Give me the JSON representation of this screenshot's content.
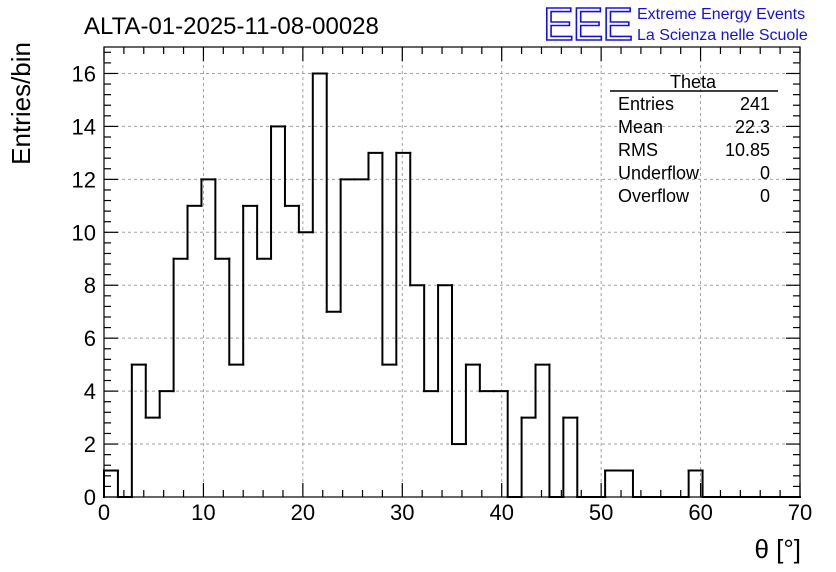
{
  "chart_data": {
    "type": "bar",
    "title": "ALTA-01-2025-11-08-00028",
    "xlabel": "θ [°]",
    "ylabel": "Entries/bin",
    "xlim": [
      0,
      70
    ],
    "ylim": [
      0,
      17
    ],
    "bin_width": 1.4,
    "x_ticks": [
      0,
      10,
      20,
      30,
      40,
      50,
      60,
      70
    ],
    "y_ticks": [
      0,
      2,
      4,
      6,
      8,
      10,
      12,
      14,
      16
    ],
    "grid": true,
    "counts": [
      1,
      0,
      5,
      3,
      4,
      9,
      11,
      12,
      9,
      5,
      11,
      9,
      14,
      11,
      10,
      16,
      7,
      12,
      12,
      13,
      5,
      13,
      8,
      4,
      8,
      2,
      5,
      4,
      4,
      0,
      3,
      5,
      0,
      3,
      0,
      0,
      1,
      1,
      0,
      0,
      0,
      0,
      1,
      0,
      0,
      0,
      0,
      0,
      0,
      0
    ],
    "stats": {
      "name": "Theta",
      "rows": [
        {
          "label": "Entries",
          "value": "241"
        },
        {
          "label": "Mean",
          "value": "22.3"
        },
        {
          "label": "RMS",
          "value": "10.85"
        },
        {
          "label": "Underflow",
          "value": "0"
        },
        {
          "label": "Overflow",
          "value": "0"
        }
      ]
    }
  },
  "branding": {
    "logo": "EEE",
    "line1": "Extreme Energy Events",
    "line2": "La Scienza nelle Scuole",
    "color": "#1111dd"
  }
}
